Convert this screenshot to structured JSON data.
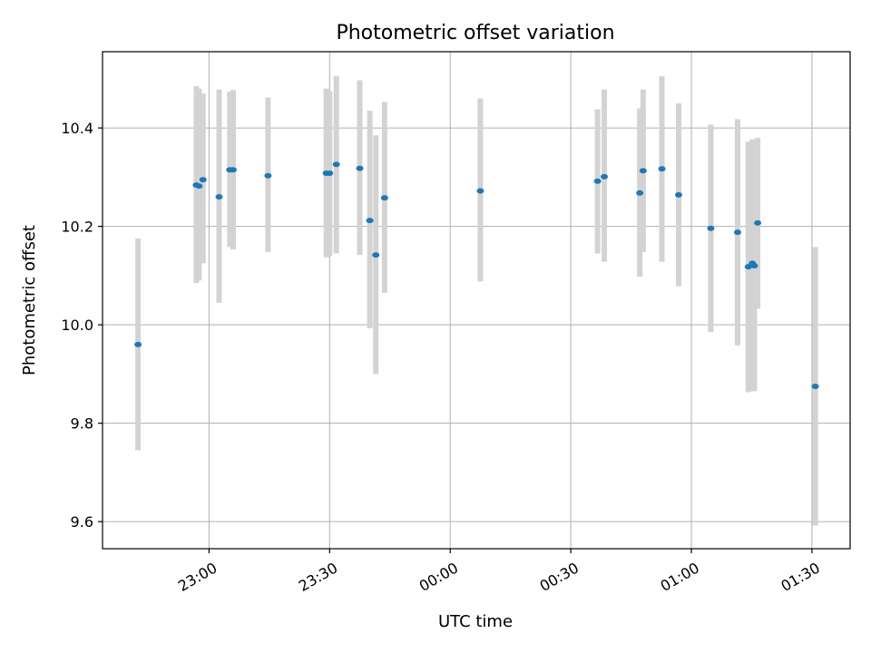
{
  "chart_data": {
    "type": "scatter",
    "title": "Photometric offset variation",
    "xlabel": "UTC time",
    "ylabel": "Photometric offset",
    "xlim": [
      "22:33:30",
      "01:39:30"
    ],
    "ylim": [
      9.545,
      10.555
    ],
    "grid": true,
    "xticks": [
      "23:00",
      "23:30",
      "00:00",
      "00:30",
      "01:00",
      "01:30"
    ],
    "yticks": [
      "9.6",
      "9.8",
      "10.0",
      "10.2",
      "10.4"
    ],
    "marker_color": "#1f77b4",
    "errorbar_color": "#d3d3d3",
    "points": [
      {
        "t": "22:42:20",
        "y": 9.96,
        "ylo": 9.745,
        "yhi": 10.175
      },
      {
        "t": "22:56:50",
        "y": 10.284,
        "ylo": 10.085,
        "yhi": 10.485
      },
      {
        "t": "22:57:30",
        "y": 10.282,
        "ylo": 10.09,
        "yhi": 10.48
      },
      {
        "t": "22:58:30",
        "y": 10.295,
        "ylo": 10.125,
        "yhi": 10.47
      },
      {
        "t": "23:02:30",
        "y": 10.26,
        "ylo": 10.045,
        "yhi": 10.478
      },
      {
        "t": "23:05:10",
        "y": 10.315,
        "ylo": 10.158,
        "yhi": 10.474
      },
      {
        "t": "23:06:00",
        "y": 10.315,
        "ylo": 10.153,
        "yhi": 10.477
      },
      {
        "t": "23:14:40",
        "y": 10.303,
        "ylo": 10.148,
        "yhi": 10.462
      },
      {
        "t": "23:29:10",
        "y": 10.308,
        "ylo": 10.137,
        "yhi": 10.48
      },
      {
        "t": "23:30:00",
        "y": 10.308,
        "ylo": 10.14,
        "yhi": 10.475
      },
      {
        "t": "23:31:40",
        "y": 10.326,
        "ylo": 10.145,
        "yhi": 10.506
      },
      {
        "t": "23:37:30",
        "y": 10.318,
        "ylo": 10.142,
        "yhi": 10.497
      },
      {
        "t": "23:40:00",
        "y": 10.212,
        "ylo": 9.993,
        "yhi": 10.435
      },
      {
        "t": "23:41:30",
        "y": 10.142,
        "ylo": 9.9,
        "yhi": 10.385
      },
      {
        "t": "23:43:40",
        "y": 10.258,
        "ylo": 10.065,
        "yhi": 10.453
      },
      {
        "t": "00:07:30",
        "y": 10.272,
        "ylo": 10.088,
        "yhi": 10.46
      },
      {
        "t": "00:36:40",
        "y": 10.292,
        "ylo": 10.145,
        "yhi": 10.438
      },
      {
        "t": "00:38:20",
        "y": 10.301,
        "ylo": 10.128,
        "yhi": 10.478
      },
      {
        "t": "00:47:10",
        "y": 10.268,
        "ylo": 10.098,
        "yhi": 10.44
      },
      {
        "t": "00:48:00",
        "y": 10.313,
        "ylo": 10.148,
        "yhi": 10.478
      },
      {
        "t": "00:52:40",
        "y": 10.317,
        "ylo": 10.128,
        "yhi": 10.505
      },
      {
        "t": "00:56:50",
        "y": 10.264,
        "ylo": 10.078,
        "yhi": 10.45
      },
      {
        "t": "01:04:50",
        "y": 10.196,
        "ylo": 9.985,
        "yhi": 10.407
      },
      {
        "t": "01:11:30",
        "y": 10.188,
        "ylo": 9.958,
        "yhi": 10.418
      },
      {
        "t": "01:14:10",
        "y": 10.118,
        "ylo": 9.863,
        "yhi": 10.372
      },
      {
        "t": "01:15:10",
        "y": 10.125,
        "ylo": 9.865,
        "yhi": 10.377
      },
      {
        "t": "01:15:40",
        "y": 10.12,
        "ylo": 9.865,
        "yhi": 10.375
      },
      {
        "t": "01:16:30",
        "y": 10.207,
        "ylo": 10.033,
        "yhi": 10.38
      },
      {
        "t": "01:30:50",
        "y": 9.875,
        "ylo": 9.592,
        "yhi": 10.158
      }
    ]
  }
}
